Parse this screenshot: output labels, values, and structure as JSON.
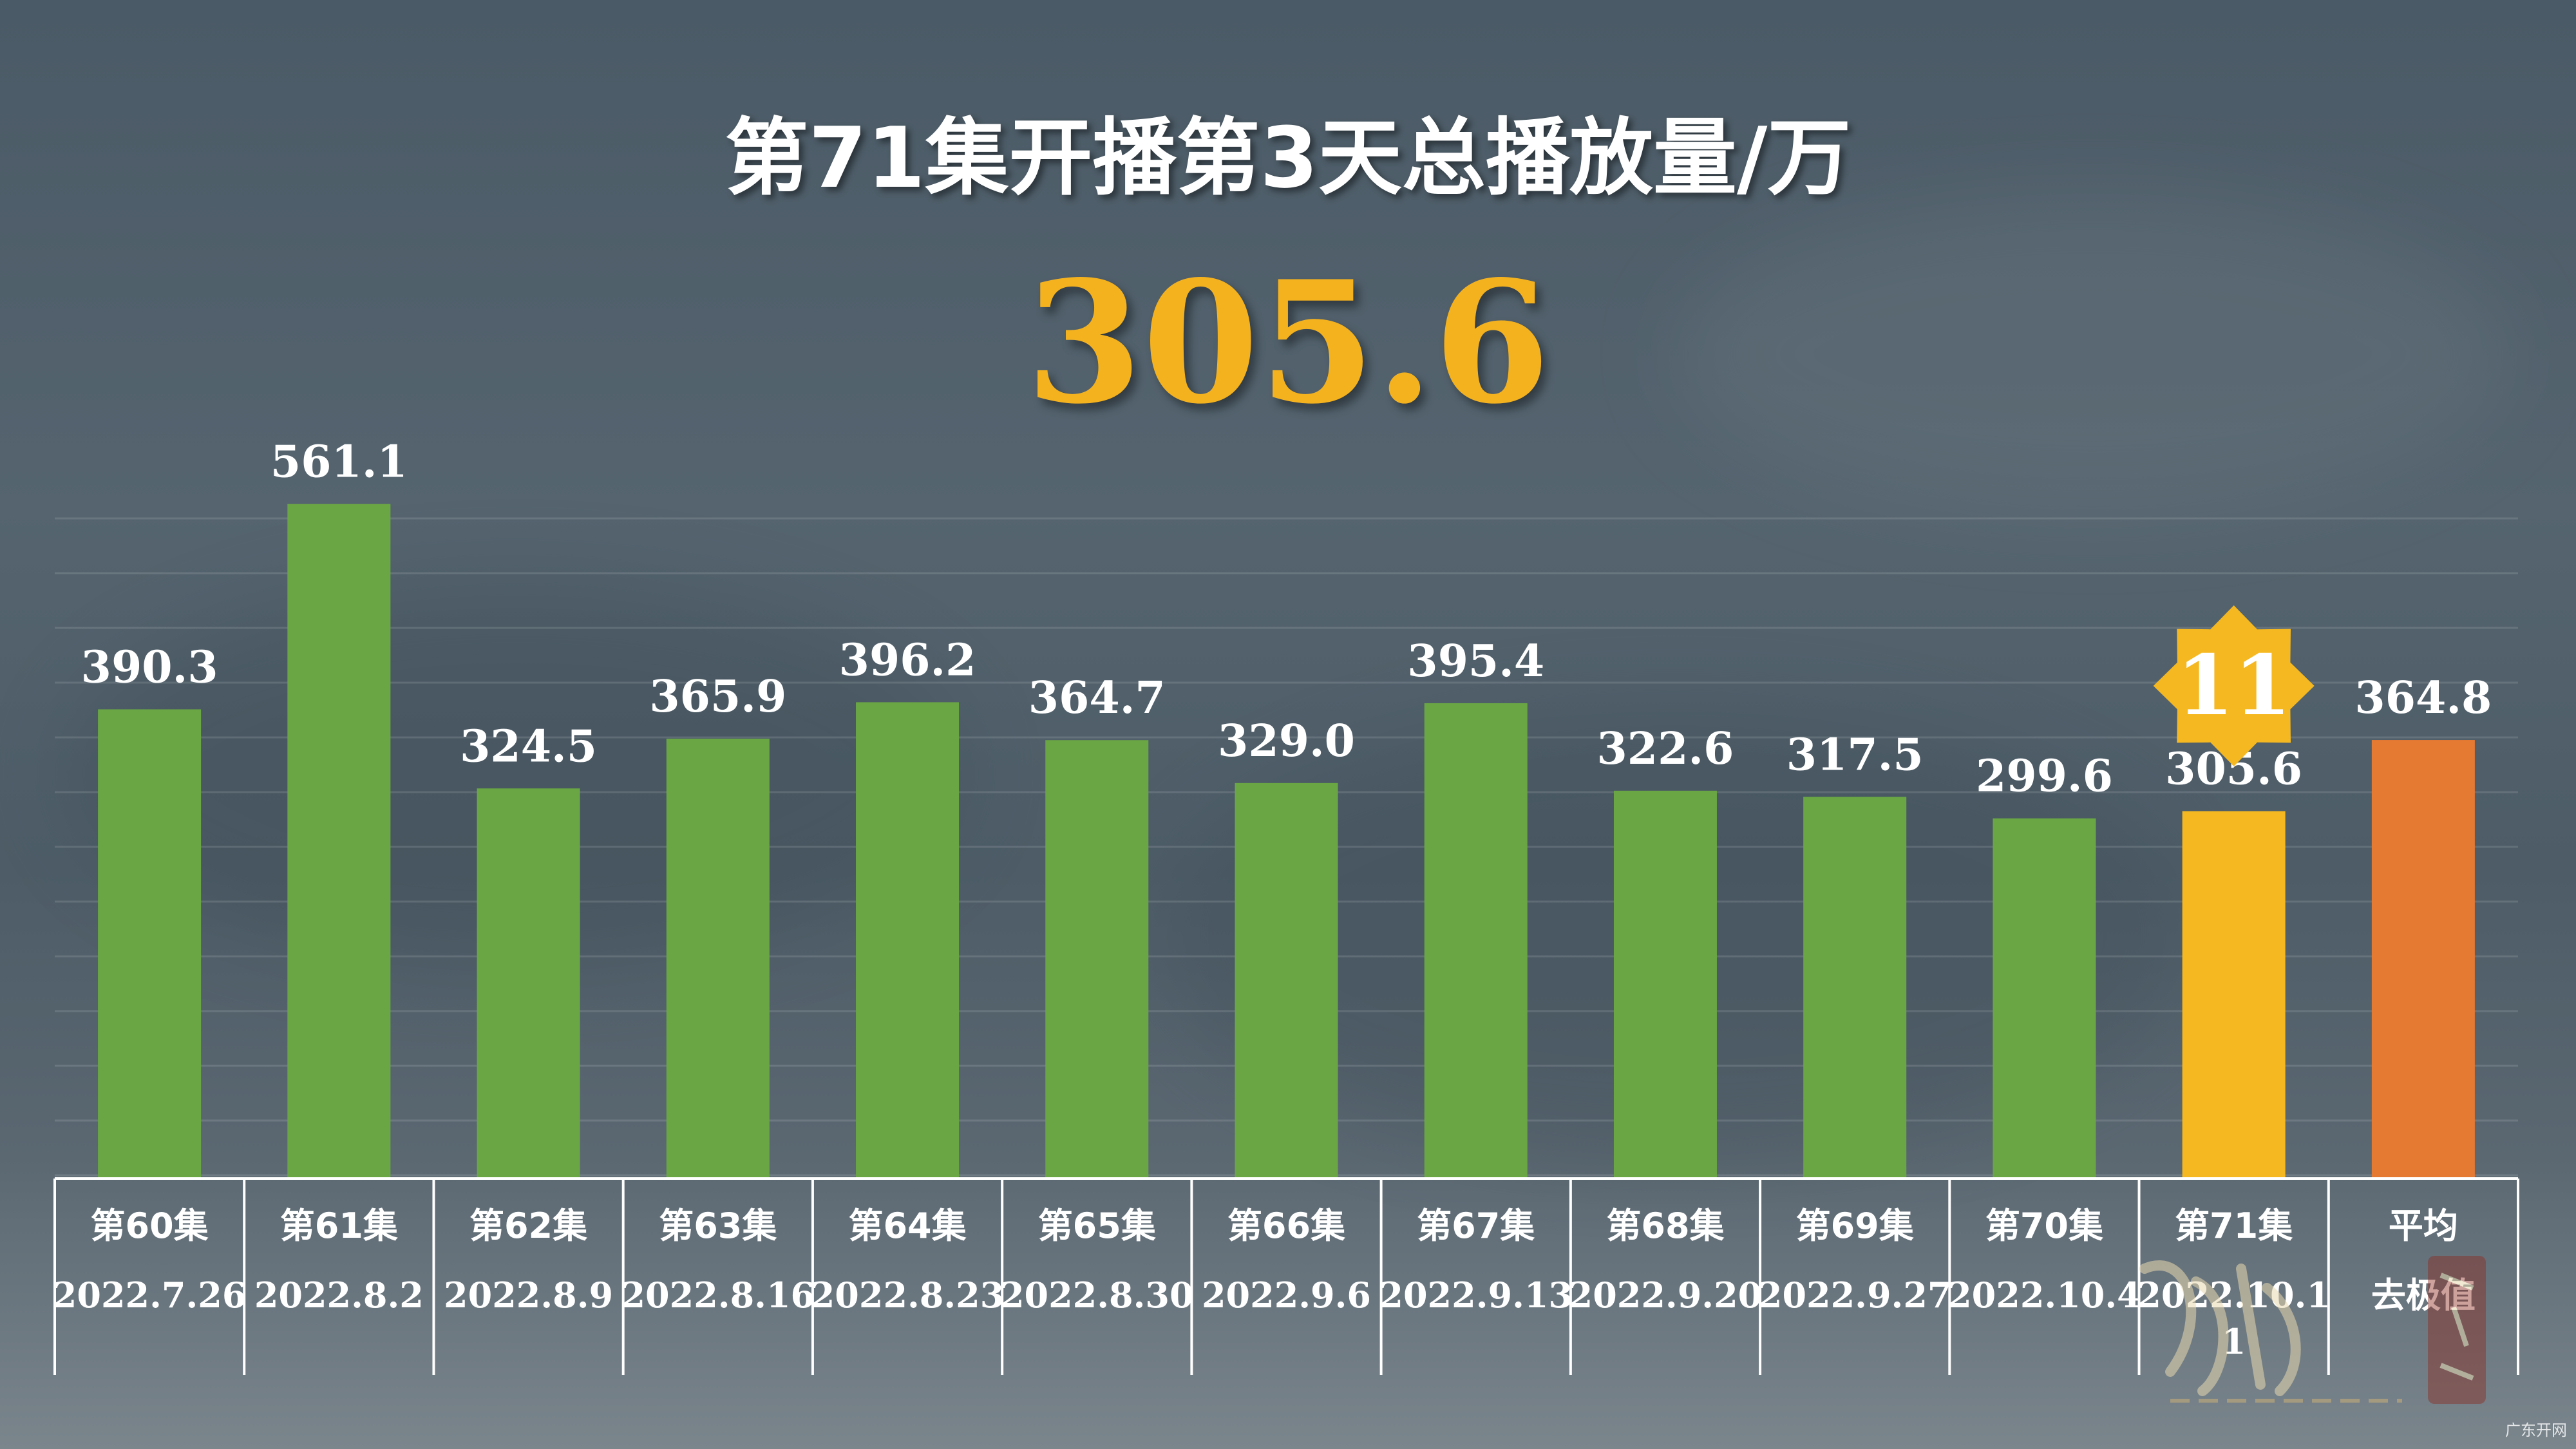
{
  "title": "第71集开播第3天总播放量/万",
  "highlight_value": "305.6",
  "colors": {
    "normal_bar": "#6aa744",
    "highlight_bar": "#f5b820",
    "average_bar": "#e57a33",
    "rank_badge": "#f5b820"
  },
  "rank_badge": {
    "text": "11",
    "index": 11
  },
  "chart_data": {
    "type": "bar",
    "categories": [
      "第60集",
      "第61集",
      "第62集",
      "第63集",
      "第64集",
      "第65集",
      "第66集",
      "第67集",
      "第68集",
      "第69集",
      "第70集",
      "第71集",
      "平均"
    ],
    "dates": [
      "2022.7.26",
      "2022.8.2",
      "2022.8.9",
      "2022.8.16",
      "2022.8.23",
      "2022.8.30",
      "2022.9.6",
      "2022.9.13",
      "2022.9.20",
      "2022.9.27",
      "2022.10.4",
      "2022.10.1",
      "去极值"
    ],
    "dates_line2": [
      "",
      "",
      "",
      "",
      "",
      "",
      "",
      "",
      "",
      "",
      "",
      "1",
      ""
    ],
    "values": [
      390.3,
      561.1,
      324.5,
      365.9,
      396.2,
      364.7,
      329.0,
      395.4,
      322.6,
      317.5,
      299.6,
      305.6,
      364.8
    ],
    "value_labels": [
      "390.3",
      "561.1",
      "324.5",
      "365.9",
      "396.2",
      "364.7",
      "329.0",
      "395.4",
      "322.6",
      "317.5",
      "299.6",
      "305.6",
      "364.8"
    ],
    "highlight_index": 11,
    "average_index": 12,
    "ylim": [
      0,
      600
    ],
    "grid": true,
    "title": "第71集开播第3天总播放量/万",
    "xlabel": "",
    "ylabel": ""
  },
  "watermark": {
    "logo_text": "凡人修仙传"
  },
  "corner_mark": "广东开网"
}
